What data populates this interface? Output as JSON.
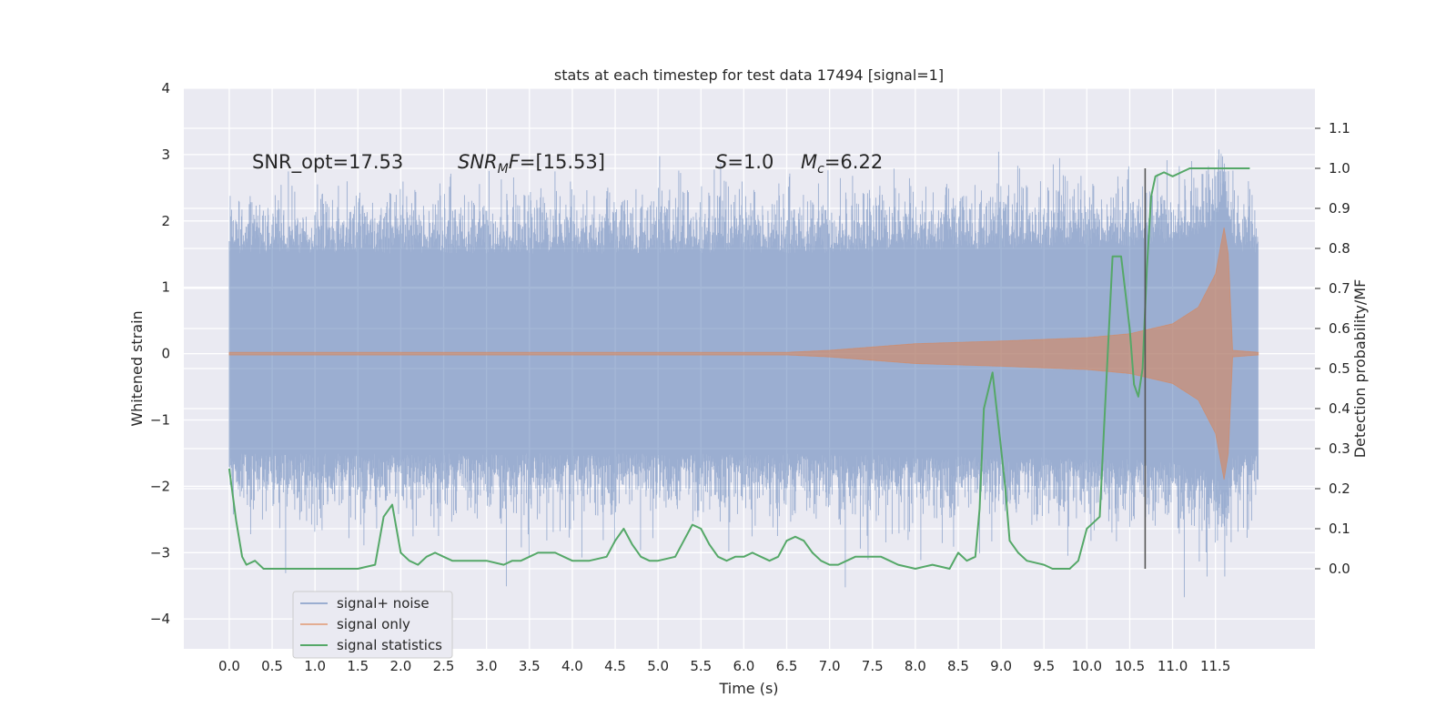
{
  "chart_data": {
    "type": "line",
    "title": "stats at each timestep for test data 17494 [signal=1]",
    "xlabel": "Time (s)",
    "ylabel_left": "Whitened strain",
    "ylabel_right": "Detection probability/MF",
    "xlim": [
      -0.53,
      12.66
    ],
    "ylim_left": [
      -4.45,
      4.0
    ],
    "ylim_right": [
      -0.2,
      1.2
    ],
    "x_ticks": [
      "0.0",
      "0.5",
      "1.0",
      "1.5",
      "2.0",
      "2.5",
      "3.0",
      "3.5",
      "4.0",
      "4.5",
      "5.0",
      "5.5",
      "6.0",
      "6.5",
      "7.0",
      "7.5",
      "8.0",
      "8.5",
      "9.0",
      "9.5",
      "10.0",
      "10.5",
      "11.0",
      "11.5"
    ],
    "y_ticks_left": [
      "4",
      "3",
      "2",
      "1",
      "0",
      "−1",
      "−2",
      "−3",
      "−4"
    ],
    "y_ticks_right": [
      "1.1",
      "1.0",
      "0.9",
      "0.8",
      "0.7",
      "0.6",
      "0.5",
      "0.4",
      "0.3",
      "0.2",
      "0.1",
      "0.0"
    ],
    "grid": true,
    "legend_position": "lower-left",
    "annotations": {
      "snr_opt": "SNR_opt=17.53",
      "snr_mf": "[15.53]",
      "s_val": "=1.0",
      "mc_val": "=6.22"
    },
    "vline_x": 10.68,
    "series": [
      {
        "name": "signal+ noise",
        "color": "#4c72b0",
        "x_range": [
          0.0,
          12.0
        ],
        "envelope_typical": 1.5,
        "envelope_max": 3.63,
        "envelope_min": -4.1
      },
      {
        "name": "signal only",
        "color": "#dd8452",
        "x_range": [
          0.0,
          12.0
        ],
        "amplitude": [
          [
            0.0,
            0.02
          ],
          [
            6.5,
            0.02
          ],
          [
            7.0,
            0.05
          ],
          [
            8.0,
            0.15
          ],
          [
            9.0,
            0.19
          ],
          [
            10.0,
            0.24
          ],
          [
            10.5,
            0.3
          ],
          [
            11.0,
            0.45
          ],
          [
            11.3,
            0.7
          ],
          [
            11.5,
            1.2
          ],
          [
            11.6,
            1.9
          ],
          [
            11.65,
            1.5
          ],
          [
            11.7,
            0.05
          ],
          [
            12.0,
            0.02
          ]
        ]
      },
      {
        "name": "signal statistics",
        "color": "#55a868",
        "x": [
          0.0,
          0.08,
          0.15,
          0.2,
          0.3,
          0.4,
          0.5,
          0.6,
          0.8,
          1.0,
          1.2,
          1.5,
          1.7,
          1.8,
          1.9,
          2.0,
          2.1,
          2.2,
          2.3,
          2.4,
          2.5,
          2.6,
          2.8,
          3.0,
          3.2,
          3.3,
          3.4,
          3.5,
          3.6,
          3.8,
          3.9,
          4.0,
          4.2,
          4.4,
          4.5,
          4.6,
          4.7,
          4.8,
          4.9,
          5.0,
          5.2,
          5.3,
          5.4,
          5.5,
          5.6,
          5.7,
          5.8,
          5.9,
          6.0,
          6.1,
          6.2,
          6.3,
          6.4,
          6.5,
          6.6,
          6.7,
          6.8,
          6.9,
          7.0,
          7.1,
          7.2,
          7.3,
          7.5,
          7.6,
          7.7,
          7.8,
          8.0,
          8.2,
          8.4,
          8.5,
          8.6,
          8.7,
          8.75,
          8.8,
          8.9,
          9.0,
          9.05,
          9.1,
          9.2,
          9.3,
          9.5,
          9.6,
          9.7,
          9.8,
          9.9,
          10.0,
          10.1,
          10.15,
          10.2,
          10.3,
          10.4,
          10.5,
          10.55,
          10.6,
          10.65,
          10.7,
          10.75,
          10.8,
          10.9,
          11.0,
          11.1,
          11.2,
          11.3,
          11.5,
          11.9
        ],
        "y": [
          0.25,
          0.12,
          0.03,
          0.01,
          0.02,
          0.0,
          0.0,
          0.0,
          0.0,
          0.0,
          0.0,
          0.0,
          0.01,
          0.13,
          0.16,
          0.04,
          0.02,
          0.01,
          0.03,
          0.04,
          0.03,
          0.02,
          0.02,
          0.02,
          0.01,
          0.02,
          0.02,
          0.03,
          0.04,
          0.04,
          0.03,
          0.02,
          0.02,
          0.03,
          0.07,
          0.1,
          0.06,
          0.03,
          0.02,
          0.02,
          0.03,
          0.07,
          0.11,
          0.1,
          0.06,
          0.03,
          0.02,
          0.03,
          0.03,
          0.04,
          0.03,
          0.02,
          0.03,
          0.07,
          0.08,
          0.07,
          0.04,
          0.02,
          0.01,
          0.01,
          0.02,
          0.03,
          0.03,
          0.03,
          0.02,
          0.01,
          0.0,
          0.01,
          0.0,
          0.04,
          0.02,
          0.03,
          0.15,
          0.4,
          0.49,
          0.3,
          0.2,
          0.07,
          0.04,
          0.02,
          0.01,
          0.0,
          0.0,
          0.0,
          0.02,
          0.1,
          0.12,
          0.13,
          0.35,
          0.78,
          0.78,
          0.6,
          0.46,
          0.43,
          0.5,
          0.75,
          0.93,
          0.98,
          0.99,
          0.98,
          0.99,
          1.0,
          1.0,
          1.0,
          1.0
        ]
      }
    ]
  }
}
